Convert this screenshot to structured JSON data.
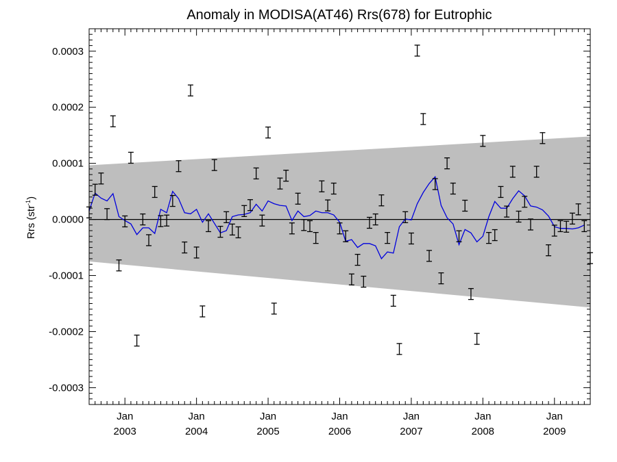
{
  "chart_data": {
    "type": "line",
    "title": "Anomaly in MODISA(AT46) Rrs(678) for Eutrophic",
    "ylabel": "Rrs (str",
    "ylabel_superscript": "-1",
    "ylabel_suffix": ")",
    "ylim": [
      -0.00033,
      0.00034
    ],
    "xlim": [
      "2002-07-01",
      "2009-07-01"
    ],
    "y_ticks": [
      {
        "value": 0.0003,
        "label": "0.0003"
      },
      {
        "value": 0.0002,
        "label": "0.0002"
      },
      {
        "value": 0.0001,
        "label": "0.0001"
      },
      {
        "value": 0.0,
        "label": "0.0000"
      },
      {
        "value": -0.0001,
        "label": "-0.0001"
      },
      {
        "value": -0.0002,
        "label": "-0.0002"
      },
      {
        "value": -0.0003,
        "label": "-0.0003"
      }
    ],
    "x_ticks": [
      {
        "date": "2003-01",
        "month": "Jan",
        "year": "2003"
      },
      {
        "date": "2004-01",
        "month": "Jan",
        "year": "2004"
      },
      {
        "date": "2005-01",
        "month": "Jan",
        "year": "2005"
      },
      {
        "date": "2006-01",
        "month": "Jan",
        "year": "2006"
      },
      {
        "date": "2007-01",
        "month": "Jan",
        "year": "2007"
      },
      {
        "date": "2008-01",
        "month": "Jan",
        "year": "2008"
      },
      {
        "date": "2009-01",
        "month": "Jan",
        "year": "2009"
      }
    ],
    "confidence_band": {
      "upper": [
        {
          "date": "2002-07",
          "y": 9.65e-05
        },
        {
          "date": "2009-07",
          "y": 0.000148
        }
      ],
      "lower": [
        {
          "date": "2002-07",
          "y": -7.5e-05
        },
        {
          "date": "2009-07",
          "y": -0.000157
        }
      ],
      "color": "#bebebe"
    },
    "zero_line": {
      "y": 0.0,
      "color": "#000000"
    },
    "series": [
      {
        "kind": "errorbar",
        "color": "#000000",
        "points": [
          {
            "date": "2002-07",
            "y": 1.25e-05
          },
          {
            "date": "2002-08",
            "y": 5.3e-05
          },
          {
            "date": "2002-09",
            "y": 7.3e-05
          },
          {
            "date": "2002-10",
            "y": 9.5e-06
          },
          {
            "date": "2002-11",
            "y": 0.000175
          },
          {
            "date": "2002-12",
            "y": -8.2e-05
          },
          {
            "date": "2003-01",
            "y": -3.5e-06
          },
          {
            "date": "2003-02",
            "y": 0.00011
          },
          {
            "date": "2003-03",
            "y": -0.000216
          },
          {
            "date": "2003-04",
            "y": 0.0
          },
          {
            "date": "2003-05",
            "y": -3.7e-05
          },
          {
            "date": "2003-06",
            "y": 4.9e-05
          },
          {
            "date": "2003-07",
            "y": -3e-06
          },
          {
            "date": "2003-08",
            "y": -2e-06
          },
          {
            "date": "2003-09",
            "y": 3.3e-05
          },
          {
            "date": "2003-10",
            "y": 9.5e-05
          },
          {
            "date": "2003-11",
            "y": -5e-05
          },
          {
            "date": "2003-12",
            "y": 0.00023
          },
          {
            "date": "2004-01",
            "y": -5.9e-05
          },
          {
            "date": "2004-02",
            "y": -0.000164
          },
          {
            "date": "2004-03",
            "y": -1.2e-05
          },
          {
            "date": "2004-04",
            "y": 9.7e-05
          },
          {
            "date": "2004-05",
            "y": -2.2e-05
          },
          {
            "date": "2004-06",
            "y": 4e-06
          },
          {
            "date": "2004-07",
            "y": -1.8e-05
          },
          {
            "date": "2004-08",
            "y": -2.3e-05
          },
          {
            "date": "2004-09",
            "y": 1.5e-05
          },
          {
            "date": "2004-10",
            "y": 2.55e-05
          },
          {
            "date": "2004-11",
            "y": 8.2e-05
          },
          {
            "date": "2004-12",
            "y": -2e-06
          },
          {
            "date": "2005-01",
            "y": 0.000155
          },
          {
            "date": "2005-02",
            "y": -0.000159
          },
          {
            "date": "2005-03",
            "y": 6.4e-05
          },
          {
            "date": "2005-04",
            "y": 7.8e-05
          },
          {
            "date": "2005-05",
            "y": -1.6e-05
          },
          {
            "date": "2005-06",
            "y": 3.7e-05
          },
          {
            "date": "2005-07",
            "y": -1e-05
          },
          {
            "date": "2005-08",
            "y": -1.2e-05
          },
          {
            "date": "2005-09",
            "y": -3.3e-05
          },
          {
            "date": "2005-10",
            "y": 5.9e-05
          },
          {
            "date": "2005-11",
            "y": 2.5e-05
          },
          {
            "date": "2005-12",
            "y": 5.5e-05
          },
          {
            "date": "2006-01",
            "y": -1.6e-05
          },
          {
            "date": "2006-02",
            "y": -3e-05
          },
          {
            "date": "2006-03",
            "y": -0.000107
          },
          {
            "date": "2006-04",
            "y": -7.2e-05
          },
          {
            "date": "2006-05",
            "y": -0.000111
          },
          {
            "date": "2006-06",
            "y": -6e-06
          },
          {
            "date": "2006-07",
            "y": 0.0
          },
          {
            "date": "2006-08",
            "y": 3.4e-05
          },
          {
            "date": "2006-09",
            "y": -3.3e-05
          },
          {
            "date": "2006-10",
            "y": -0.000145
          },
          {
            "date": "2006-11",
            "y": -0.000231
          },
          {
            "date": "2006-12",
            "y": 4e-06
          },
          {
            "date": "2007-01",
            "y": -3.4e-05
          },
          {
            "date": "2007-02",
            "y": 0.000301
          },
          {
            "date": "2007-03",
            "y": 0.000179
          },
          {
            "date": "2007-04",
            "y": -6.5e-05
          },
          {
            "date": "2007-05",
            "y": 6.3e-05
          },
          {
            "date": "2007-06",
            "y": -0.000105
          },
          {
            "date": "2007-07",
            "y": 0.0001
          },
          {
            "date": "2007-08",
            "y": 5.5e-05
          },
          {
            "date": "2007-09",
            "y": -3e-05
          },
          {
            "date": "2007-10",
            "y": 2.45e-05
          },
          {
            "date": "2007-11",
            "y": -0.000133
          },
          {
            "date": "2007-12",
            "y": -0.000213
          },
          {
            "date": "2008-01",
            "y": 0.00014
          },
          {
            "date": "2008-02",
            "y": -3.3e-05
          },
          {
            "date": "2008-03",
            "y": -2.8e-05
          },
          {
            "date": "2008-04",
            "y": 4.9e-05
          },
          {
            "date": "2008-05",
            "y": 1.4e-05
          },
          {
            "date": "2008-06",
            "y": 8.5e-05
          },
          {
            "date": "2008-07",
            "y": 5e-06
          },
          {
            "date": "2008-08",
            "y": 3.15e-05
          },
          {
            "date": "2008-09",
            "y": -9e-06
          },
          {
            "date": "2008-10",
            "y": 8.5e-05
          },
          {
            "date": "2008-11",
            "y": 0.000145
          },
          {
            "date": "2008-12",
            "y": -5.5e-05
          },
          {
            "date": "2009-01",
            "y": -2e-05
          },
          {
            "date": "2009-02",
            "y": -1.2e-05
          },
          {
            "date": "2009-03",
            "y": -1.3e-05
          },
          {
            "date": "2009-04",
            "y": 1.5e-06
          },
          {
            "date": "2009-05",
            "y": 1.8e-05
          },
          {
            "date": "2009-06",
            "y": -1.2e-05
          },
          {
            "date": "2009-07",
            "y": -6.9e-05
          }
        ]
      },
      {
        "kind": "line",
        "color": "#0000dd",
        "points": [
          {
            "date": "2002-07",
            "y": 1.5e-05
          },
          {
            "date": "2002-08",
            "y": 4.7e-05
          },
          {
            "date": "2002-09",
            "y": 3.8e-05
          },
          {
            "date": "2002-10",
            "y": 3.3e-05
          },
          {
            "date": "2002-11",
            "y": 4.6e-05
          },
          {
            "date": "2002-12",
            "y": 5e-06
          },
          {
            "date": "2003-01",
            "y": -2e-06
          },
          {
            "date": "2003-02",
            "y": -8e-06
          },
          {
            "date": "2003-03",
            "y": -2.7e-05
          },
          {
            "date": "2003-04",
            "y": -1.5e-05
          },
          {
            "date": "2003-05",
            "y": -1.5e-05
          },
          {
            "date": "2003-06",
            "y": -2.5e-05
          },
          {
            "date": "2003-07",
            "y": 1.8e-05
          },
          {
            "date": "2003-08",
            "y": 1.2e-05
          },
          {
            "date": "2003-09",
            "y": 5e-05
          },
          {
            "date": "2003-10",
            "y": 3.7e-05
          },
          {
            "date": "2003-11",
            "y": 1.2e-05
          },
          {
            "date": "2003-12",
            "y": 1e-05
          },
          {
            "date": "2004-01",
            "y": 1.8e-05
          },
          {
            "date": "2004-02",
            "y": -5e-06
          },
          {
            "date": "2004-03",
            "y": 1e-05
          },
          {
            "date": "2004-04",
            "y": -7e-06
          },
          {
            "date": "2004-05",
            "y": -2.4e-05
          },
          {
            "date": "2004-06",
            "y": -2e-05
          },
          {
            "date": "2004-07",
            "y": 5e-06
          },
          {
            "date": "2004-08",
            "y": 8e-06
          },
          {
            "date": "2004-09",
            "y": 9e-06
          },
          {
            "date": "2004-10",
            "y": 1.2e-05
          },
          {
            "date": "2004-11",
            "y": 2.7e-05
          },
          {
            "date": "2004-12",
            "y": 1.5e-05
          },
          {
            "date": "2005-01",
            "y": 3.3e-05
          },
          {
            "date": "2005-02",
            "y": 2.8e-05
          },
          {
            "date": "2005-03",
            "y": 2.5e-05
          },
          {
            "date": "2005-04",
            "y": 2.4e-05
          },
          {
            "date": "2005-05",
            "y": -2e-06
          },
          {
            "date": "2005-06",
            "y": 1.5e-05
          },
          {
            "date": "2005-07",
            "y": 5e-06
          },
          {
            "date": "2005-08",
            "y": 7e-06
          },
          {
            "date": "2005-09",
            "y": 1.5e-05
          },
          {
            "date": "2005-10",
            "y": 1.2e-05
          },
          {
            "date": "2005-11",
            "y": 1.2e-05
          },
          {
            "date": "2005-12",
            "y": 8e-06
          },
          {
            "date": "2006-01",
            "y": -5e-06
          },
          {
            "date": "2006-02",
            "y": -3.9e-05
          },
          {
            "date": "2006-03",
            "y": -3.6e-05
          },
          {
            "date": "2006-04",
            "y": -5e-05
          },
          {
            "date": "2006-05",
            "y": -4.3e-05
          },
          {
            "date": "2006-06",
            "y": -4.3e-05
          },
          {
            "date": "2006-07",
            "y": -4.7e-05
          },
          {
            "date": "2006-08",
            "y": -7e-05
          },
          {
            "date": "2006-09",
            "y": -5.8e-05
          },
          {
            "date": "2006-10",
            "y": -6e-05
          },
          {
            "date": "2006-11",
            "y": -1.3e-05
          },
          {
            "date": "2006-12",
            "y": 1e-06
          },
          {
            "date": "2007-01",
            "y": -1e-06
          },
          {
            "date": "2007-02",
            "y": 2.8e-05
          },
          {
            "date": "2007-03",
            "y": 4.8e-05
          },
          {
            "date": "2007-04",
            "y": 6.4e-05
          },
          {
            "date": "2007-05",
            "y": 7.6e-05
          },
          {
            "date": "2007-06",
            "y": 2.5e-05
          },
          {
            "date": "2007-07",
            "y": 3e-06
          },
          {
            "date": "2007-08",
            "y": -8e-06
          },
          {
            "date": "2007-09",
            "y": -4.5e-05
          },
          {
            "date": "2007-10",
            "y": -1.8e-05
          },
          {
            "date": "2007-11",
            "y": -2.4e-05
          },
          {
            "date": "2007-12",
            "y": -4e-05
          },
          {
            "date": "2008-01",
            "y": -3e-05
          },
          {
            "date": "2008-02",
            "y": 5e-06
          },
          {
            "date": "2008-03",
            "y": 3.2e-05
          },
          {
            "date": "2008-04",
            "y": 2e-05
          },
          {
            "date": "2008-05",
            "y": 2e-05
          },
          {
            "date": "2008-06",
            "y": 3.7e-05
          },
          {
            "date": "2008-07",
            "y": 5.1e-05
          },
          {
            "date": "2008-08",
            "y": 4.2e-05
          },
          {
            "date": "2008-09",
            "y": 2.4e-05
          },
          {
            "date": "2008-10",
            "y": 2.2e-05
          },
          {
            "date": "2008-11",
            "y": 1.7e-05
          },
          {
            "date": "2008-12",
            "y": 6e-06
          },
          {
            "date": "2009-01",
            "y": -1.3e-05
          },
          {
            "date": "2009-02",
            "y": -1.6e-05
          },
          {
            "date": "2009-03",
            "y": -1.6e-05
          },
          {
            "date": "2009-04",
            "y": -1.7e-05
          },
          {
            "date": "2009-05",
            "y": -1.5e-05
          },
          {
            "date": "2009-06",
            "y": -1e-05
          }
        ]
      }
    ],
    "grid": false,
    "legend": "none"
  }
}
